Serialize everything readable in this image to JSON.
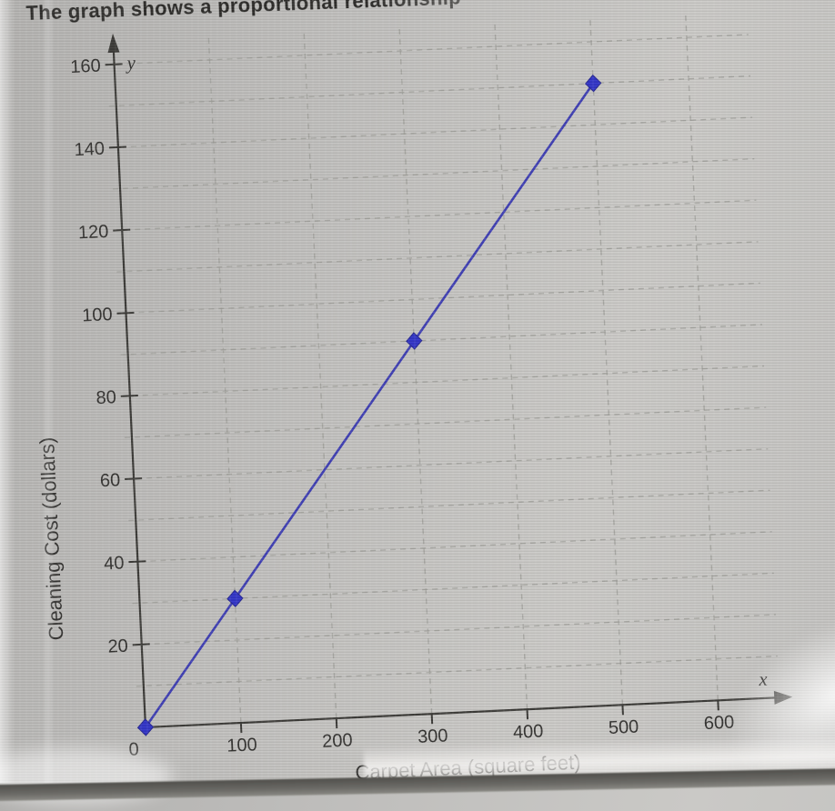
{
  "page": {
    "heading": "The graph shows a proportional relationship",
    "colors": {
      "background": "#c1c0be",
      "text": "#2e2d2b",
      "axis": "#363532",
      "grid": "#9e9d99",
      "line": "#3a3ab2",
      "marker": "#2c2fc6",
      "bottom_band": "#55544f",
      "glare": "#f3f2f0"
    }
  },
  "chart_data": {
    "type": "line",
    "title": "The graph shows a proportional relationship",
    "xlabel": "Carpet Area (square feet)",
    "ylabel": "Cleaning Cost (dollars)",
    "x_axis_letter": "x",
    "y_axis_letter": "y",
    "origin_label": "0",
    "points": [
      [
        0,
        0
      ],
      [
        100,
        30
      ],
      [
        300,
        90
      ],
      [
        500,
        150
      ]
    ],
    "x_ticks": [
      0,
      100,
      200,
      300,
      400,
      500,
      600
    ],
    "y_ticks": [
      20,
      40,
      60,
      80,
      100,
      120,
      140,
      160
    ],
    "x_grid_step": 100,
    "x_grid_max": 600,
    "y_grid_step": 10,
    "y_grid_max": 160,
    "xlim": [
      0,
      660
    ],
    "ylim": [
      0,
      165
    ],
    "grid": true,
    "legend": false,
    "marker_shape": "diamond"
  }
}
